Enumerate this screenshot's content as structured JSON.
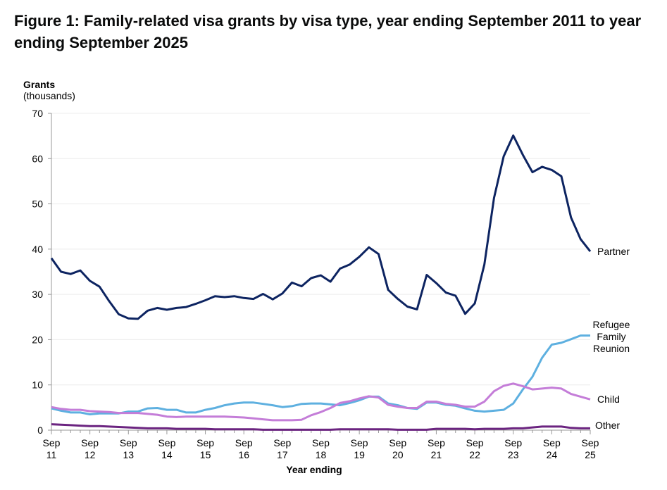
{
  "title": "Figure 1: Family-related visa grants by visa type, year ending September 2011 to year ending September 2025",
  "chart_data": {
    "type": "line",
    "title": "Figure 1: Family-related visa grants by visa type, year ending September 2011 to year ending September 2025",
    "ylabel": "Grants",
    "ylabel_unit": "(thousands)",
    "xlabel": "Year ending",
    "ylim": [
      0,
      70
    ],
    "yticks": [
      0,
      10,
      20,
      30,
      40,
      50,
      60,
      70
    ],
    "xtick_labels": [
      [
        "Sep",
        "11"
      ],
      [
        "Sep",
        "12"
      ],
      [
        "Sep",
        "13"
      ],
      [
        "Sep",
        "14"
      ],
      [
        "Sep",
        "15"
      ],
      [
        "Sep",
        "16"
      ],
      [
        "Sep",
        "17"
      ],
      [
        "Sep",
        "18"
      ],
      [
        "Sep",
        "19"
      ],
      [
        "Sep",
        "20"
      ],
      [
        "Sep",
        "21"
      ],
      [
        "Sep",
        "22"
      ],
      [
        "Sep",
        "23"
      ],
      [
        "Sep",
        "24"
      ],
      [
        "Sep",
        "25"
      ]
    ],
    "x": [
      "Sep 11",
      "Dec 11",
      "Mar 12",
      "Jun 12",
      "Sep 12",
      "Dec 12",
      "Mar 13",
      "Jun 13",
      "Sep 13",
      "Dec 13",
      "Mar 14",
      "Jun 14",
      "Sep 14",
      "Dec 14",
      "Mar 15",
      "Jun 15",
      "Sep 15",
      "Dec 15",
      "Mar 16",
      "Jun 16",
      "Sep 16",
      "Dec 16",
      "Mar 17",
      "Jun 17",
      "Sep 17",
      "Dec 17",
      "Mar 18",
      "Jun 18",
      "Sep 18",
      "Dec 18",
      "Mar 19",
      "Jun 19",
      "Sep 19",
      "Dec 19",
      "Mar 20",
      "Jun 20",
      "Sep 20",
      "Dec 20",
      "Mar 21",
      "Jun 21",
      "Sep 21",
      "Dec 21",
      "Mar 22",
      "Jun 22",
      "Sep 22",
      "Dec 22",
      "Mar 23",
      "Jun 23",
      "Sep 23",
      "Dec 23",
      "Mar 24",
      "Jun 24",
      "Sep 24",
      "Dec 24",
      "Mar 25",
      "Jun 25",
      "Sep 25"
    ],
    "grid": "horizontal",
    "legend": "direct labels at right end of lines",
    "series": [
      {
        "name": "Partner",
        "color": "#0d2461",
        "values": [
          38,
          35,
          34.5,
          35.3,
          33,
          31.7,
          28.5,
          25.6,
          24.7,
          24.6,
          26.4,
          27,
          26.6,
          27,
          27.2,
          27.9,
          28.7,
          29.6,
          29.4,
          29.6,
          29.2,
          29,
          30.1,
          28.9,
          30.2,
          32.6,
          31.8,
          33.6,
          34.2,
          32.8,
          35.7,
          36.6,
          38.3,
          40.4,
          38.9,
          31,
          29,
          27.3,
          26.7,
          34.3,
          32.5,
          30.4,
          29.7,
          25.7,
          28,
          36.6,
          51.3,
          60.5,
          65.1,
          60.8,
          57,
          58.2,
          57.5,
          56.1,
          47,
          42.2,
          39.5
        ]
      },
      {
        "name": "Refugee Family Reunion",
        "label_lines": [
          "Refugee",
          "Family",
          "Reunion"
        ],
        "color": "#5eb0e0",
        "values": [
          4.8,
          4.3,
          3.9,
          3.9,
          3.5,
          3.7,
          3.7,
          3.7,
          4.1,
          4.1,
          4.8,
          4.9,
          4.5,
          4.5,
          3.9,
          3.9,
          4.5,
          4.9,
          5.5,
          5.9,
          6.1,
          6.1,
          5.8,
          5.5,
          5.1,
          5.3,
          5.8,
          5.9,
          5.9,
          5.7,
          5.5,
          6,
          6.6,
          7.4,
          7.4,
          5.9,
          5.5,
          4.9,
          4.7,
          6.1,
          6.1,
          5.6,
          5.4,
          4.8,
          4.3,
          4.1,
          4.3,
          4.5,
          5.9,
          9,
          11.8,
          16,
          18.9,
          19.3,
          20.1,
          20.9,
          20.9
        ]
      },
      {
        "name": "Child",
        "color": "#c47dd8",
        "values": [
          5.1,
          4.7,
          4.5,
          4.5,
          4.2,
          4.1,
          4.0,
          3.8,
          3.8,
          3.8,
          3.6,
          3.4,
          3.0,
          2.9,
          3.0,
          3.0,
          3.0,
          3.0,
          3.0,
          2.9,
          2.8,
          2.6,
          2.4,
          2.2,
          2.2,
          2.2,
          2.3,
          3.3,
          4.0,
          4.9,
          6.0,
          6.4,
          7.0,
          7.5,
          7.2,
          5.6,
          5.2,
          4.9,
          4.9,
          6.3,
          6.3,
          5.8,
          5.6,
          5.2,
          5.2,
          6.3,
          8.6,
          9.8,
          10.3,
          9.7,
          9.0,
          9.2,
          9.4,
          9.2,
          8.0,
          7.4,
          6.8
        ]
      },
      {
        "name": "Other",
        "color": "#6b2480",
        "values": [
          1.3,
          1.2,
          1.1,
          1.0,
          0.9,
          0.9,
          0.8,
          0.7,
          0.6,
          0.5,
          0.4,
          0.4,
          0.4,
          0.3,
          0.3,
          0.3,
          0.3,
          0.2,
          0.2,
          0.2,
          0.2,
          0.2,
          0.1,
          0.1,
          0.1,
          0.1,
          0.1,
          0.1,
          0.1,
          0.1,
          0.2,
          0.2,
          0.2,
          0.2,
          0.2,
          0.2,
          0.1,
          0.1,
          0.1,
          0.1,
          0.3,
          0.3,
          0.3,
          0.3,
          0.2,
          0.3,
          0.3,
          0.3,
          0.4,
          0.4,
          0.6,
          0.8,
          0.8,
          0.8,
          0.5,
          0.4,
          0.4
        ]
      }
    ]
  }
}
